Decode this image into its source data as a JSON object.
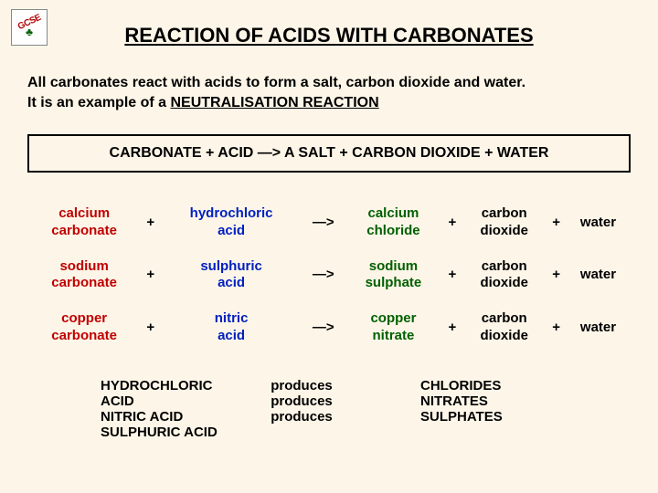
{
  "logo": {
    "label": "GCSE"
  },
  "title": "REACTION OF ACIDS WITH CARBONATES",
  "intro": {
    "line1_pre": "All carbonates react with acids to form a salt, carbon dioxide and water.",
    "line2_pre": "It is an example of a ",
    "line2_under": "NEUTRALISATION REACTION"
  },
  "general_eq": "CARBONATE   +   ACID   —>   A SALT   +   CARBON DIOXIDE   +   WATER",
  "rows": [
    {
      "carbonate": "calcium carbonate",
      "acid": "hydrochloric acid",
      "salt": "calcium chloride",
      "gas": "carbon dioxide",
      "water": "water"
    },
    {
      "carbonate": "sodium carbonate",
      "acid": "sulphuric acid",
      "salt": "sodium sulphate",
      "gas": "carbon dioxide",
      "water": "water"
    },
    {
      "carbonate": "copper carbonate",
      "acid": "nitric acid",
      "salt": "copper nitrate",
      "gas": "carbon dioxide",
      "water": "water"
    }
  ],
  "sym": {
    "plus": "+",
    "arrow": "—>"
  },
  "produces": {
    "acids": [
      "HYDROCHLORIC ACID",
      "NITRIC ACID",
      "SULPHURIC ACID"
    ],
    "verb": "produces",
    "salts": [
      "CHLORIDES",
      "NITRATES",
      "SULPHATES"
    ]
  },
  "colors": {
    "background": "#fdf6e8",
    "red": "#c00000",
    "blue": "#0020c0",
    "green": "#006000",
    "black": "#000000"
  }
}
